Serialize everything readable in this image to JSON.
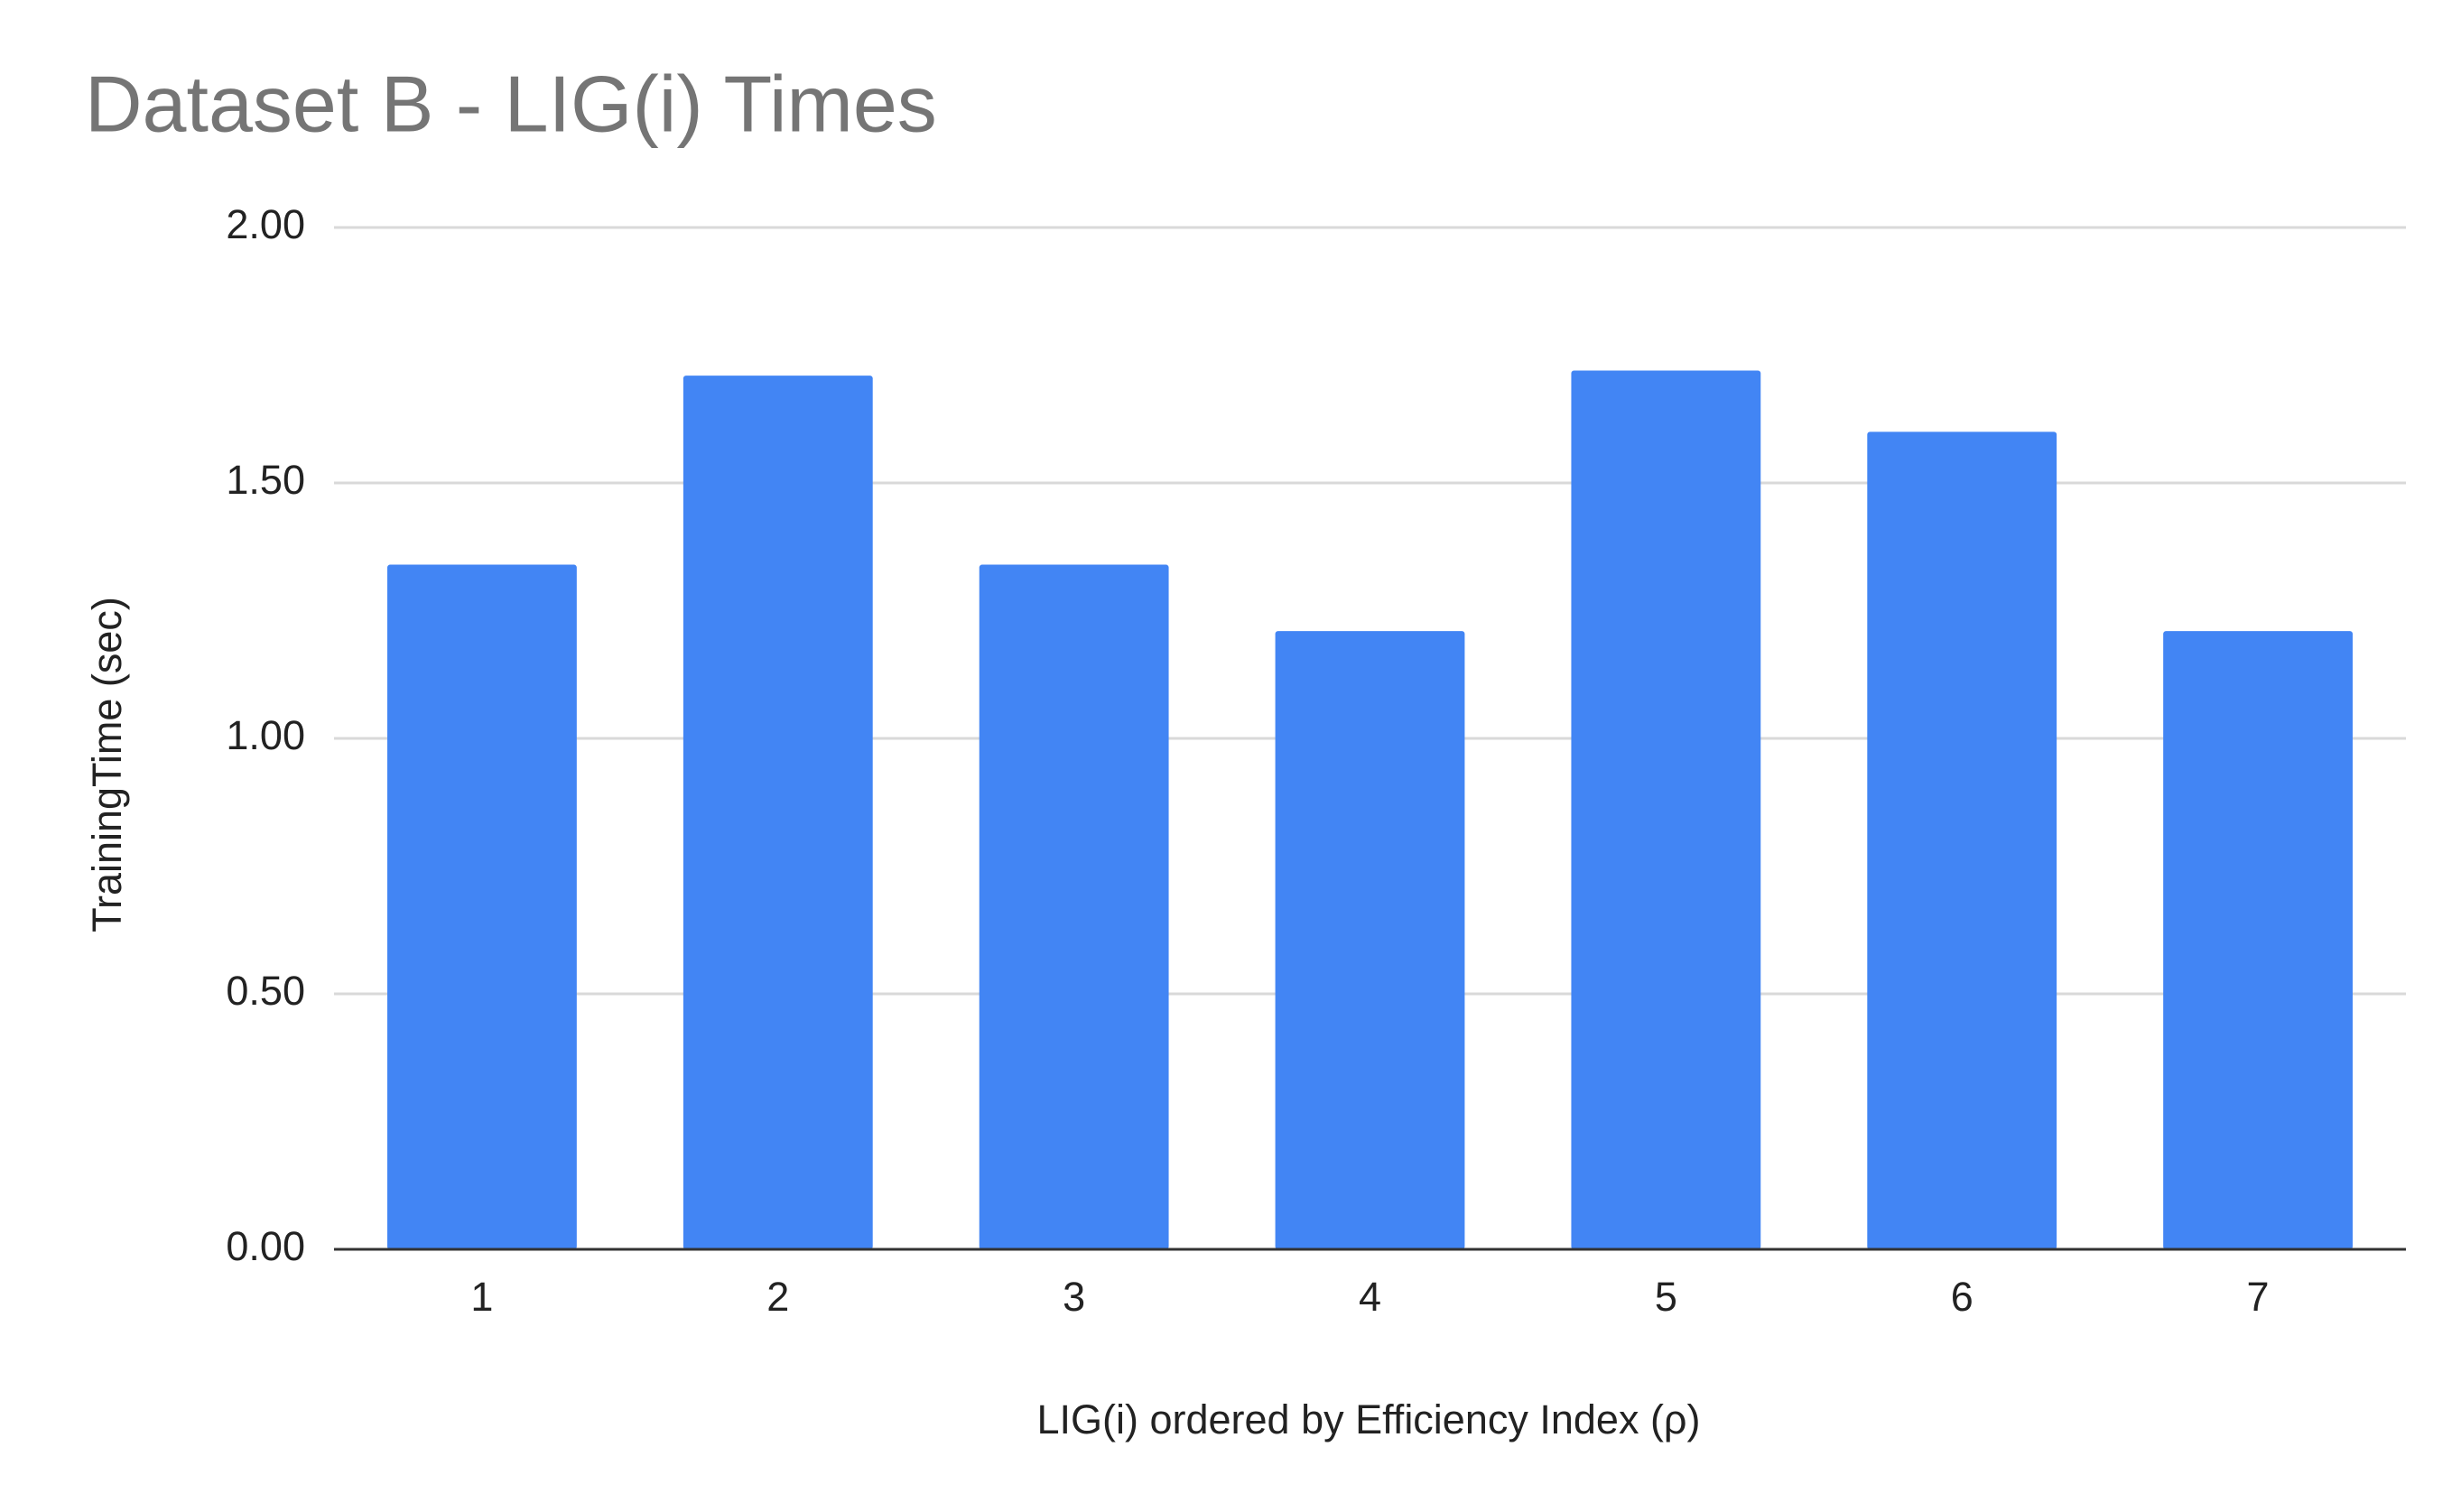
{
  "chart_data": {
    "type": "bar",
    "title": "Dataset B - LIG(i) Times",
    "x_label": "LIG(i) ordered by Efficiency Index (ρ)",
    "y_label": "TrainingTime (sec)",
    "categories": [
      "1",
      "2",
      "3",
      "4",
      "5",
      "6",
      "7"
    ],
    "values": [
      1.34,
      1.71,
      1.34,
      1.21,
      1.72,
      1.6,
      1.21
    ],
    "color": "#4285f4",
    "ylim": [
      0,
      2
    ],
    "yticks": [
      {
        "value": 0,
        "label": "0.00"
      },
      {
        "value": 0.5,
        "label": "0.50"
      },
      {
        "value": 1,
        "label": "1.00"
      },
      {
        "value": 1.5,
        "label": "1.50"
      },
      {
        "value": 2,
        "label": "2.00"
      }
    ],
    "grid": true
  }
}
